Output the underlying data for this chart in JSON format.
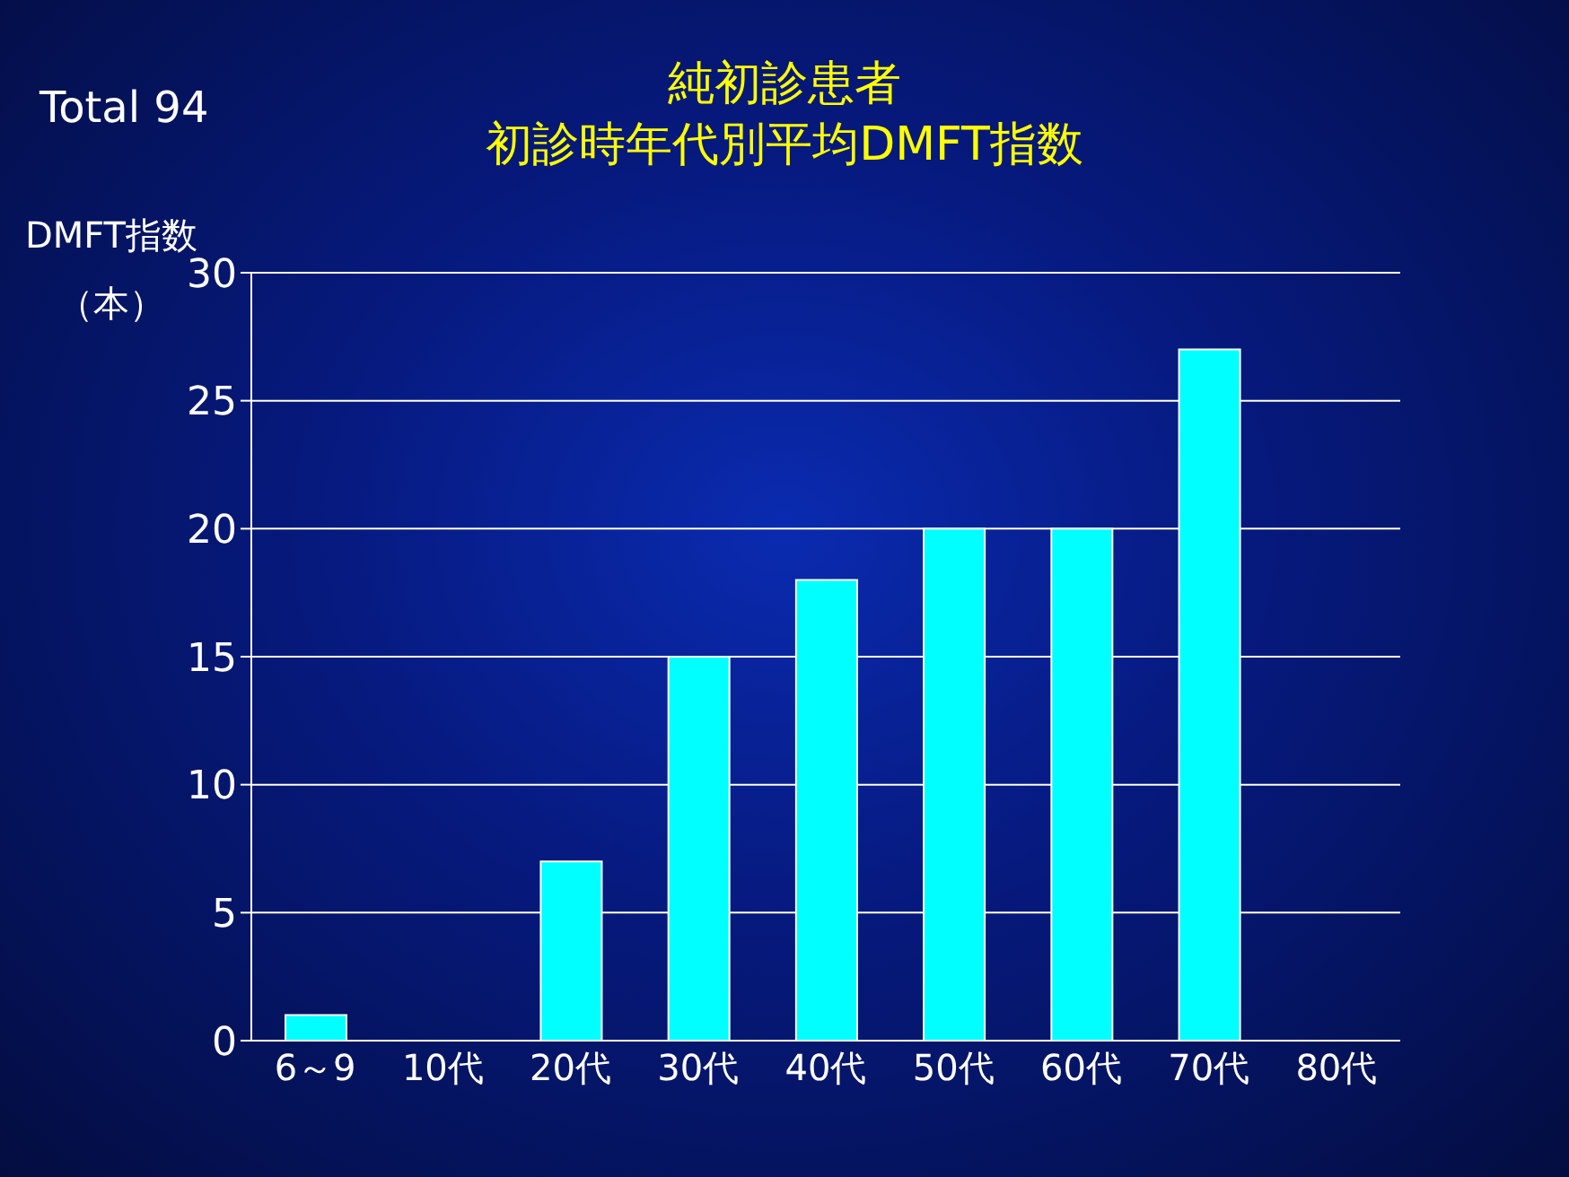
{
  "chart_data": {
    "type": "bar",
    "title": "純初診患者",
    "subtitle": "初診時年代別平均DMFT指数",
    "ylabel": "DMFT指数（本）",
    "annotations": [
      "Total 94"
    ],
    "categories": [
      "6～9",
      "10代",
      "20代",
      "30代",
      "40代",
      "50代",
      "60代",
      "70代",
      "80代"
    ],
    "values": [
      1,
      0,
      7,
      15,
      18,
      20,
      20,
      27,
      0
    ],
    "color": "#00ffff",
    "ylim": [
      0,
      30
    ],
    "yticks": [
      0,
      5,
      10,
      15,
      20,
      25,
      30
    ],
    "grid": "y"
  }
}
